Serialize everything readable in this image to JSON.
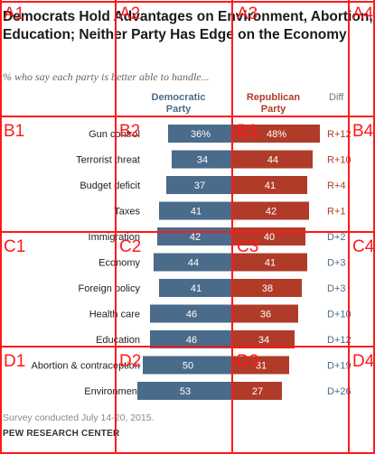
{
  "header": {
    "title": "Democrats Hold Advantages on Environment, Abortion, Education; Neither Party Has Edge on the Economy",
    "subtitle": "% who say each party is better able to handle...",
    "dem_label": "Democratic Party",
    "rep_label": "Republican Party",
    "diff_label": "Diff"
  },
  "footer": {
    "note": "Survey conducted July 14-20, 2015.",
    "source": "PEW RESEARCH CENTER"
  },
  "colors": {
    "democratic": "#4a6b8a",
    "republican": "#b03b29",
    "overlay": "#ff1a1a"
  },
  "chart_data": {
    "type": "bar",
    "categories": [
      "Gun control",
      "Terrorist threat",
      "Budget deficit",
      "Taxes",
      "Immigration",
      "Economy",
      "Foreign policy",
      "Health care",
      "Education",
      "Abortion & contraception",
      "Environment"
    ],
    "series": [
      {
        "name": "Democratic Party",
        "values": [
          36,
          34,
          37,
          41,
          42,
          44,
          41,
          46,
          46,
          50,
          53
        ],
        "labels": [
          "36%",
          "34",
          "37",
          "41",
          "42",
          "44",
          "41",
          "46",
          "46",
          "50",
          "53"
        ]
      },
      {
        "name": "Republican Party",
        "values": [
          48,
          44,
          41,
          42,
          40,
          41,
          38,
          36,
          34,
          31,
          27
        ],
        "labels": [
          "48%",
          "44",
          "41",
          "42",
          "40",
          "41",
          "38",
          "36",
          "34",
          "31",
          "27"
        ]
      }
    ],
    "diff": [
      "R+12",
      "R+10",
      "R+4",
      "R+1",
      "D+2",
      "D+3",
      "D+3",
      "D+10",
      "D+12",
      "D+19",
      "D+26"
    ]
  },
  "overlay": {
    "labels": [
      "A1",
      "A2",
      "A3",
      "A4",
      "B1",
      "B2",
      "B3",
      "B4",
      "C1",
      "C2",
      "C3",
      "C4",
      "D1",
      "D2",
      "D3",
      "D4"
    ]
  }
}
